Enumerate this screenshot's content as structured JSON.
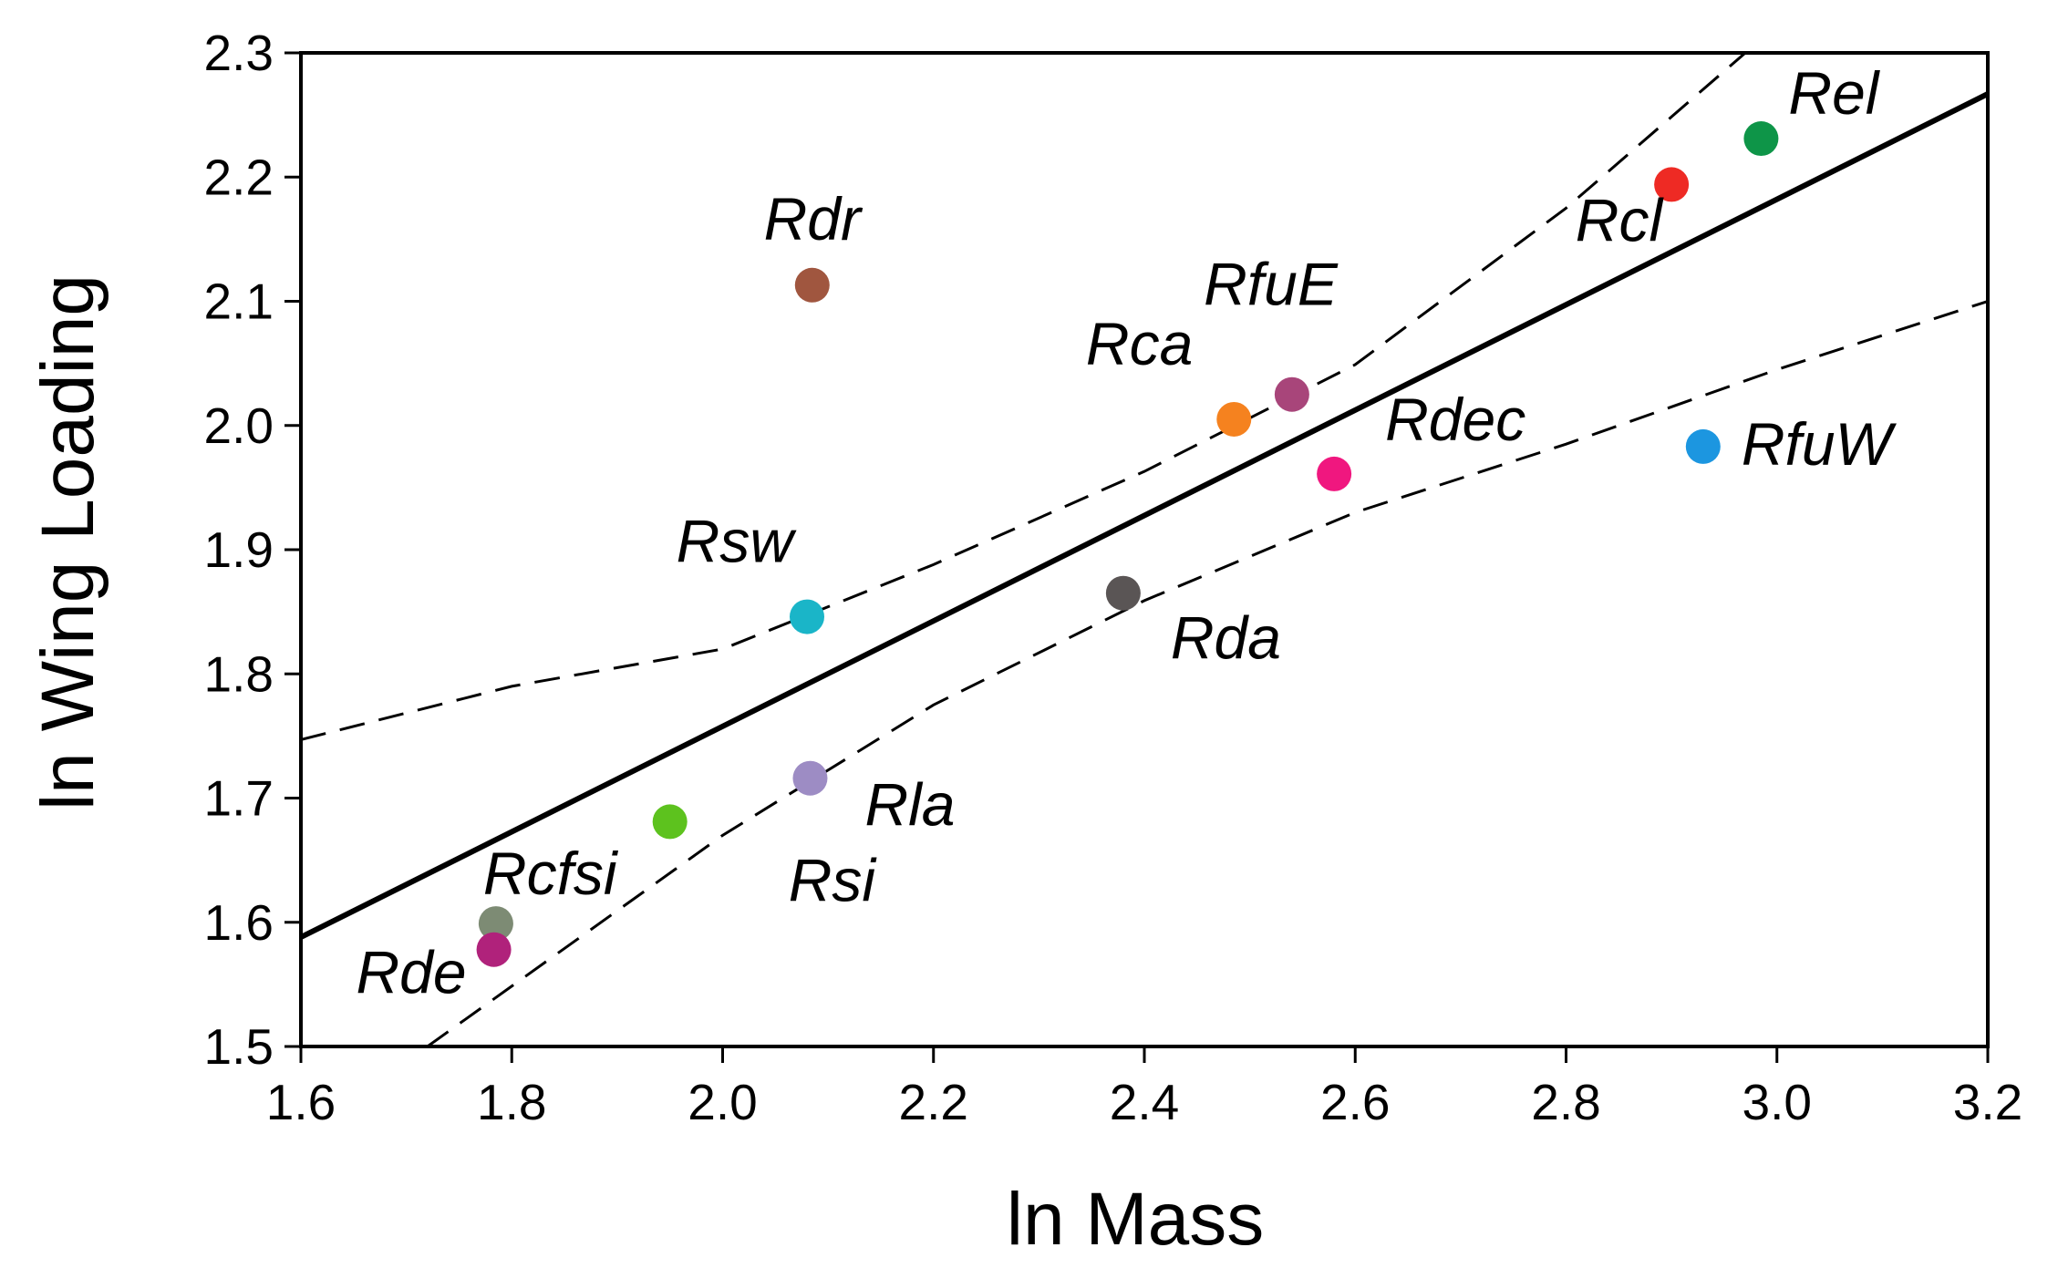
{
  "chart_data": {
    "type": "scatter",
    "title": "",
    "xlabel": "ln Mass",
    "ylabel": "ln Wing Loading",
    "xlim": [
      1.6,
      3.2
    ],
    "ylim": [
      1.5,
      2.3
    ],
    "xticks": [
      "1.6",
      "1.8",
      "2.0",
      "2.2",
      "2.4",
      "2.6",
      "2.8",
      "3.0",
      "3.2"
    ],
    "yticks": [
      "1.5",
      "1.6",
      "1.7",
      "1.8",
      "1.9",
      "2.0",
      "2.1",
      "2.2",
      "2.3"
    ],
    "grid": false,
    "points": [
      {
        "label": "Rdr",
        "x": 2.085,
        "y": 2.113,
        "color": "#a0563f"
      },
      {
        "label": "Rsw",
        "x": 2.08,
        "y": 1.846,
        "color": "#1ab5c8"
      },
      {
        "label": "Rla",
        "x": 2.083,
        "y": 1.716,
        "color": "#9d8cc4"
      },
      {
        "label": "Rsi",
        "x": 1.95,
        "y": 1.681,
        "color": "#5dc21e"
      },
      {
        "label": "Rcfsi",
        "x": 1.785,
        "y": 1.599,
        "color": "#7d8b74"
      },
      {
        "label": "Rde",
        "x": 1.783,
        "y": 1.578,
        "color": "#b0227b"
      },
      {
        "label": "Rda",
        "x": 2.38,
        "y": 1.865,
        "color": "#5a5555"
      },
      {
        "label": "Rca",
        "x": 2.485,
        "y": 2.005,
        "color": "#f5821f"
      },
      {
        "label": "RfuE",
        "x": 2.54,
        "y": 2.025,
        "color": "#a8457a"
      },
      {
        "label": "Rdec",
        "x": 2.58,
        "y": 1.961,
        "color": "#f0177f"
      },
      {
        "label": "Rcl",
        "x": 2.9,
        "y": 2.194,
        "color": "#ee2a24"
      },
      {
        "label": "Rel",
        "x": 2.985,
        "y": 2.231,
        "color": "#0e9548"
      },
      {
        "label": "RfuW",
        "x": 2.93,
        "y": 1.983,
        "color": "#1c96e0"
      }
    ],
    "regression_line": {
      "x": [
        1.6,
        3.2
      ],
      "y": [
        1.588,
        2.267
      ]
    },
    "confidence_upper": {
      "x": [
        1.6,
        1.8,
        2.0,
        2.2,
        2.4,
        2.6,
        2.8,
        2.97
      ],
      "y": [
        1.747,
        1.79,
        1.82,
        1.888,
        1.963,
        2.049,
        2.175,
        2.3
      ]
    },
    "confidence_lower": {
      "x": [
        1.72,
        2.0,
        2.2,
        2.4,
        2.6,
        2.8,
        3.0,
        3.2
      ],
      "y": [
        1.5,
        1.67,
        1.775,
        1.859,
        1.93,
        1.985,
        2.045,
        2.1
      ]
    }
  }
}
